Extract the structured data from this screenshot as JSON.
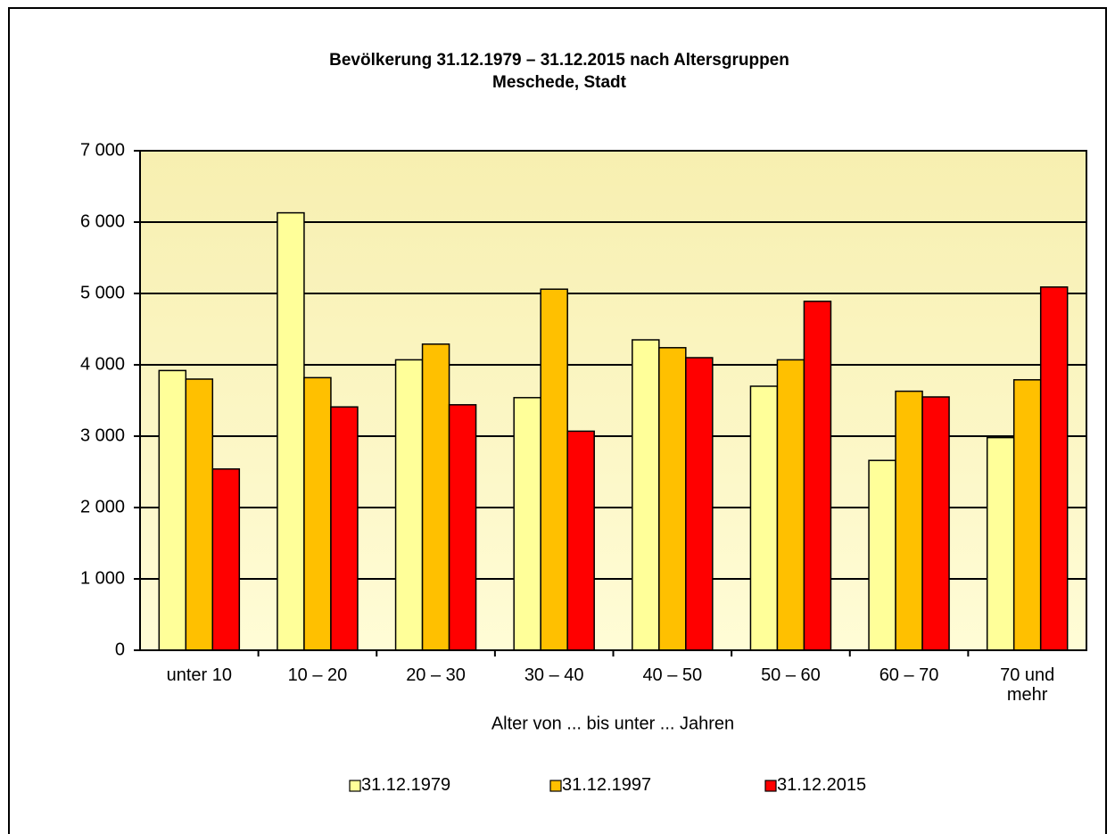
{
  "chart_data": {
    "type": "bar",
    "title": "Bevölkerung 31.12.1979 – 31.12.2015 nach Altersgruppen",
    "subtitle": "Meschede, Stadt",
    "x_label": "Alter von ... bis unter ... Jahren",
    "categories": [
      "unter 10",
      "10 – 20",
      "20 – 30",
      "30 – 40",
      "40 – 50",
      "50 – 60",
      "60 – 70",
      "70 und mehr"
    ],
    "series": [
      {
        "name": "31.12.1979",
        "color": "#ffff99",
        "values": [
          3920,
          6130,
          4070,
          3540,
          4350,
          3700,
          2660,
          2980
        ]
      },
      {
        "name": "31.12.1997",
        "color": "#ffc000",
        "values": [
          3800,
          3820,
          4290,
          5060,
          4240,
          4070,
          3630,
          3790
        ]
      },
      {
        "name": "31.12.2015",
        "color": "#ff0000",
        "values": [
          2540,
          3410,
          3440,
          3070,
          4100,
          4890,
          3550,
          5090
        ]
      }
    ],
    "ylim": [
      0,
      7000
    ],
    "yticks": [
      0,
      {
        "value": 1000,
        "label": "1 000"
      },
      {
        "value": 2000,
        "label": "2 000"
      },
      {
        "value": 3000,
        "label": "3 000"
      },
      {
        "value": 4000,
        "label": "4 000"
      },
      {
        "value": 5000,
        "label": "5 000"
      },
      {
        "value": 6000,
        "label": "6 000"
      },
      {
        "value": 7000,
        "label": "7 000"
      }
    ],
    "grid": true,
    "legend": "bottom"
  }
}
